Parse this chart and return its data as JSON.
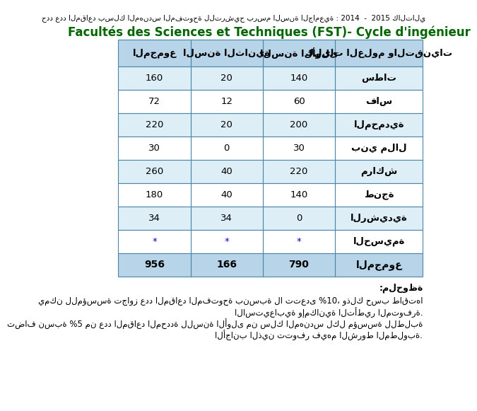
{
  "top_text": "حدد عدد المقاعد بسلك المهندس المفتوحة للترشيح برسم السنة الجامعية : 2014  -  2015 كالتالي",
  "title": "Facultés des Sciences et Techniques (FST)- Cycle d'ingénieur",
  "col_headers": [
    "كليات العلوم والتقنيات",
    "السنة الأولى",
    "السنة الثانية",
    "المجموع"
  ],
  "rows": [
    [
      "سطات",
      "140",
      "20",
      "160"
    ],
    [
      "فاس",
      "60",
      "12",
      "72"
    ],
    [
      "المحمدية",
      "200",
      "20",
      "220"
    ],
    [
      "بني ملال",
      "30",
      "0",
      "30"
    ],
    [
      "مراكش",
      "220",
      "40",
      "260"
    ],
    [
      "طنجة",
      "140",
      "40",
      "180"
    ],
    [
      "الرشيدية",
      "0",
      "34",
      "34"
    ],
    [
      "الحسيمة",
      "*",
      "*",
      "*"
    ],
    [
      "المجموع",
      "790",
      "166",
      "956"
    ]
  ],
  "notes": [
    ":ملحوظة",
    "يمكن للمؤسسة تجاوز عدد المقاعد المفتوحة بنسبة لا تتعدى %10، وذلك حسب طاقتها",
    "الاستيعابية وإمكانية التأطير المتوفرة.",
    "تضاف نسبة %5 من عدد المقاعد المحددة للسنة الأولى من سلك المهندس لكل مؤسسة للطلبة",
    "الأجانب الذين تتوفر فيهم الشروط المطلوبة."
  ],
  "header_bg": "#b8d4e8",
  "row_bg_even": "#ddeef6",
  "row_bg_odd": "#ffffff",
  "last_row_bg": "#b8d4e8",
  "star_color": "#0000cc",
  "title_color": "#006600",
  "top_text_color": "#000000",
  "border_color": "#4a86a8",
  "note_color": "#000000"
}
